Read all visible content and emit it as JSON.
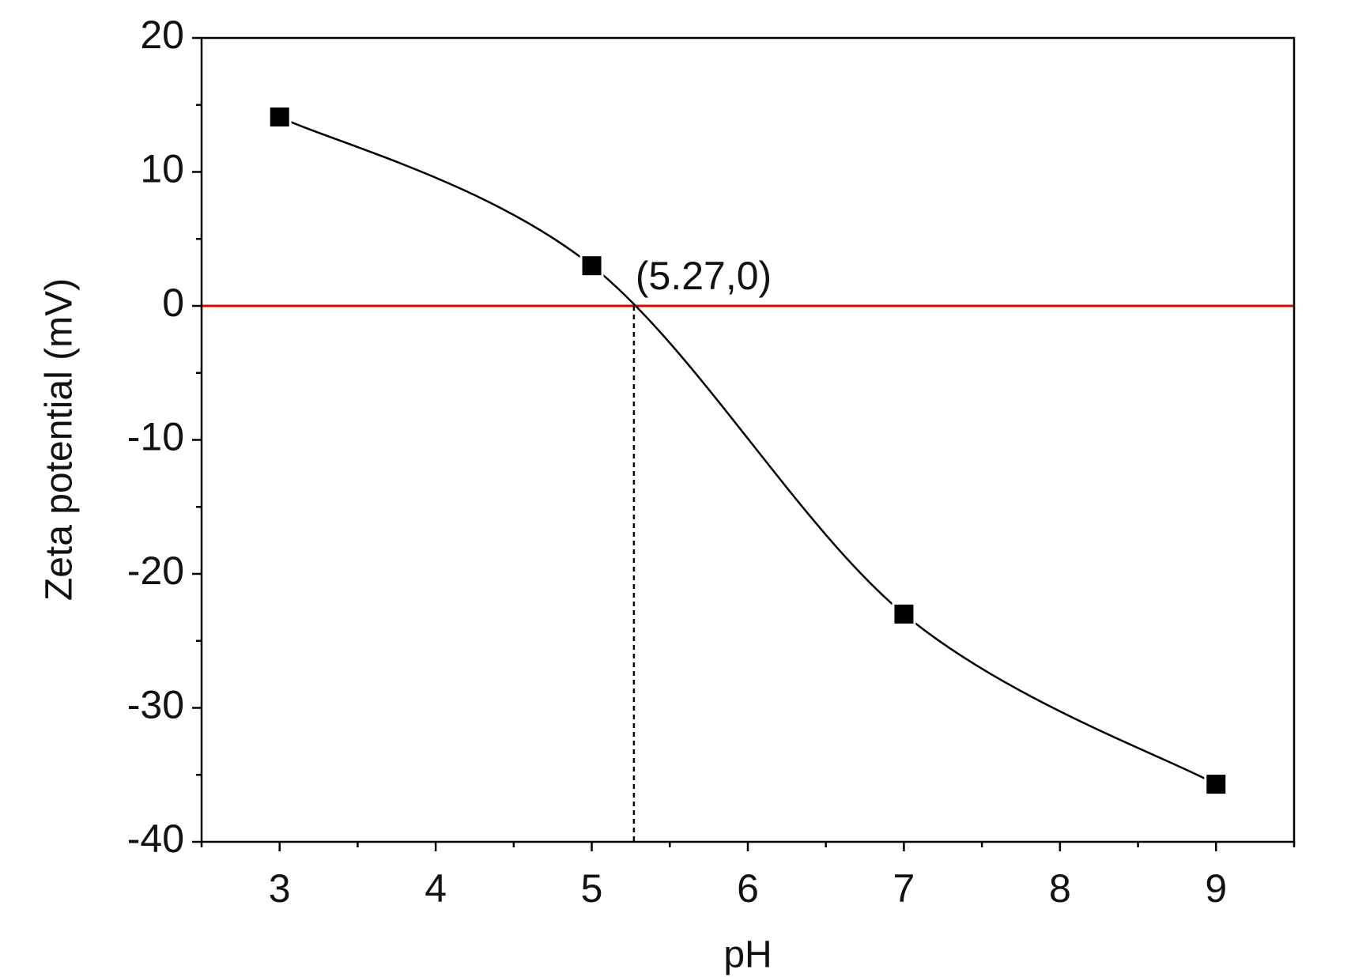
{
  "chart_data": {
    "type": "line",
    "x_label": "pH",
    "y_label": "Zeta potential (mV)",
    "x": [
      3,
      5,
      7,
      9
    ],
    "series": [
      {
        "color": "#000000",
        "marker": "square",
        "values": [
          14.1,
          3.0,
          -23.0,
          -35.7
        ]
      }
    ],
    "xlim": [
      2.5,
      9.5
    ],
    "ylim": [
      -40,
      20
    ],
    "xticks": [
      3,
      4,
      5,
      6,
      7,
      8,
      9
    ],
    "yticks": [
      -40,
      -30,
      -20,
      -10,
      0,
      10,
      20
    ],
    "xminorticks": [
      2.5,
      3.5,
      4.5,
      5.5,
      6.5,
      7.5,
      8.5,
      9.5
    ],
    "yminorticks": [
      -35,
      -25,
      -15,
      -5,
      5,
      15
    ],
    "reference_line": {
      "y": 0,
      "color": "#e00000"
    },
    "annotation": {
      "text": "(5.27,0)",
      "x": 5.27,
      "y": 0
    },
    "grid": false
  }
}
